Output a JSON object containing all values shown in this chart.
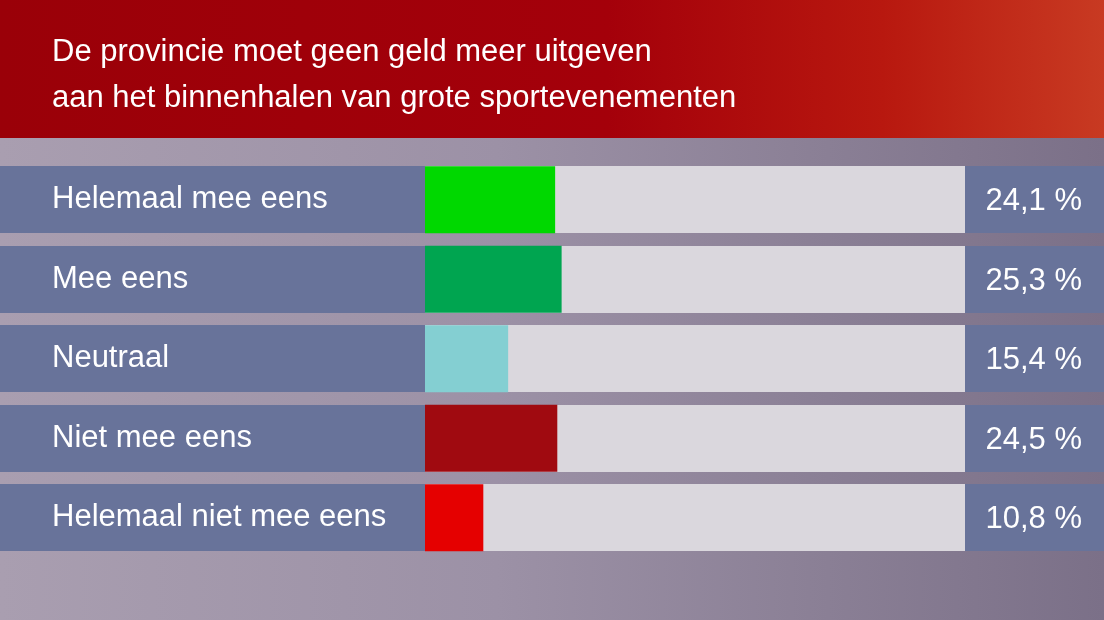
{
  "chart_data": {
    "type": "bar",
    "orientation": "horizontal",
    "title": "De provincie moet geen geld meer uitgeven\naan het binnenhalen van grote sportevenementen",
    "categories": [
      "Helemaal mee eens",
      "Mee eens",
      "Neutraal",
      "Niet mee eens",
      "Helemaal niet mee eens"
    ],
    "values": [
      24.1,
      25.3,
      15.4,
      24.5,
      10.8
    ],
    "colors": [
      "#00d800",
      "#00a550",
      "#84cfd2",
      "#a00a10",
      "#e50000"
    ],
    "value_labels": [
      "24,1 %",
      "25,3 %",
      "15,4 %",
      "24,5 %",
      "10,8 %"
    ],
    "xlim": [
      0,
      100
    ],
    "tick_labels": "y",
    "grid": false,
    "legend": false
  }
}
